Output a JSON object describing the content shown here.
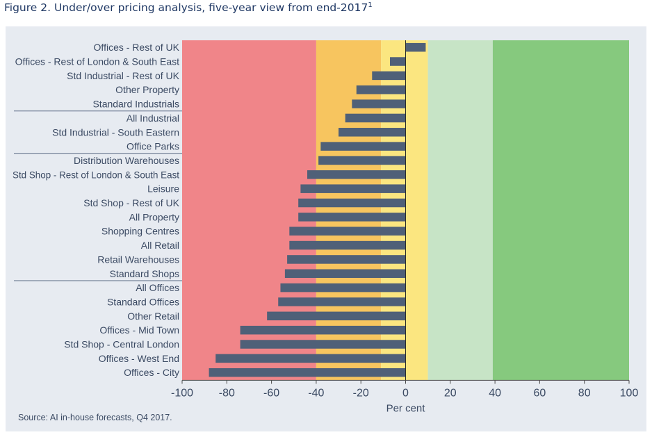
{
  "title": "Figure 2. Under/over pricing analysis, five-year view from end-2017",
  "title_sup": "1",
  "source": "Source: AI in-house forecasts, Q4 2017.",
  "colors": {
    "zone_deep_red": "#f08589",
    "zone_orange": "#f7c55f",
    "zone_yellow": "#fbe680",
    "zone_light_green": "#c7e4c6",
    "zone_green": "#86c97e",
    "bar": "#4f6078",
    "panel": "#e7ebf1",
    "title": "#1f3864"
  },
  "chart_data": {
    "type": "bar",
    "orientation": "horizontal",
    "xlabel": "Per cent",
    "xlim": [
      -100,
      100
    ],
    "xticks": [
      -100,
      -80,
      -60,
      -40,
      -20,
      0,
      20,
      40,
      60,
      80,
      100
    ],
    "grid": false,
    "background_zones": [
      {
        "from": -100,
        "to": -40,
        "color": "#f08589"
      },
      {
        "from": -40,
        "to": -11,
        "color": "#f7c55f"
      },
      {
        "from": -11,
        "to": 0,
        "color": "#fbe680"
      },
      {
        "from": 0,
        "to": 10,
        "color": "#fbe680"
      },
      {
        "from": 10,
        "to": 39,
        "color": "#c7e4c6"
      },
      {
        "from": 39,
        "to": 100,
        "color": "#86c97e"
      }
    ],
    "categories": [
      "Offices - Rest of UK",
      "Offices - Rest of London & South East",
      "Std Industrial - Rest of UK",
      "Other Property",
      "Standard Industrials",
      "All Industrial",
      "Std Industrial - South Eastern",
      "Office Parks",
      "Distribution Warehouses",
      "Std Shop - Rest of London & South East",
      "Leisure",
      "Std Shop - Rest of UK",
      "All Property",
      "Shopping Centres",
      "All Retail",
      "Retail Warehouses",
      "Standard Shops",
      "All Offices",
      "Standard Offices",
      "Other Retail",
      "Offices - Mid Town",
      "Std Shop - Central London",
      "Offices - West End",
      "Offices - City"
    ],
    "values": [
      9,
      -7,
      -15,
      -22,
      -24,
      -27,
      -30,
      -38,
      -39,
      -44,
      -47,
      -48,
      -48,
      -52,
      -52,
      -53,
      -54,
      -56,
      -57,
      -62,
      -74,
      -74,
      -85,
      -88
    ],
    "group_separators_after": [
      4,
      7,
      16
    ]
  }
}
